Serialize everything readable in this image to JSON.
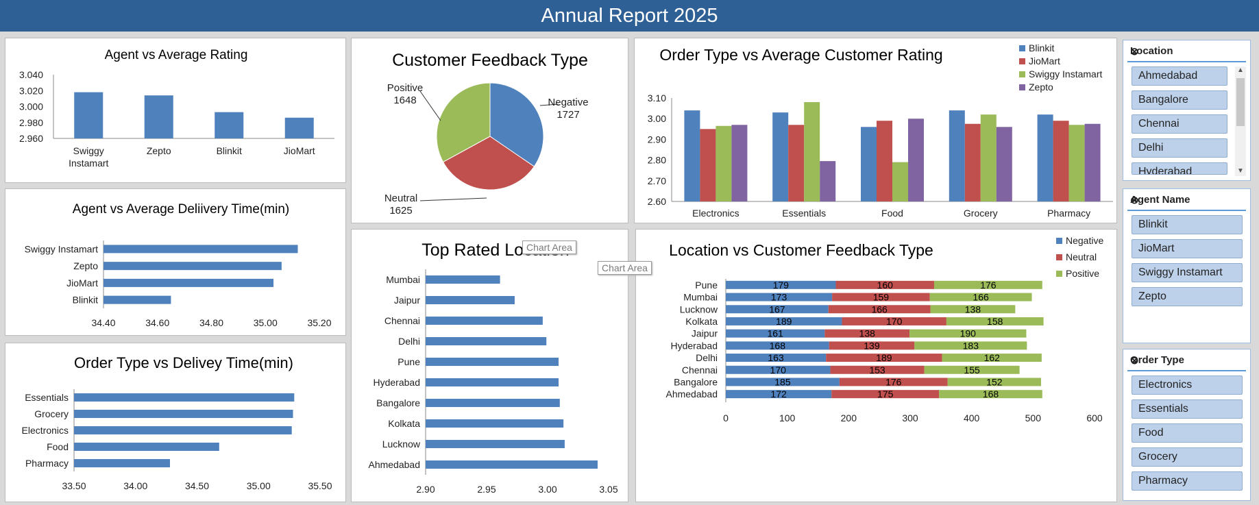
{
  "header": {
    "title": "Annual Report 2025"
  },
  "tooltips": {
    "chart_area_1": "Chart Area",
    "chart_area_2": "Chart Area"
  },
  "colors": {
    "blue": "#4f81bd",
    "red": "#c0504d",
    "green": "#9bbb59",
    "purple": "#8064a2",
    "header": "#2e5f95"
  },
  "slicers": {
    "location": {
      "title": "Location",
      "items": [
        "Ahmedabad",
        "Bangalore",
        "Chennai",
        "Delhi",
        "Hyderabad"
      ]
    },
    "agent": {
      "title": "Agent Name",
      "items": [
        "Blinkit",
        "JioMart",
        "Swiggy Instamart",
        "Zepto"
      ]
    },
    "order_type": {
      "title": "Order Type",
      "items": [
        "Electronics",
        "Essentials",
        "Food",
        "Grocery",
        "Pharmacy"
      ]
    }
  },
  "chart_data": [
    {
      "id": "agent_rating",
      "type": "bar",
      "title": "Agent vs Average Rating",
      "categories": [
        "Swiggy\nInstamart",
        "Zepto",
        "Blinkit",
        "JioMart"
      ],
      "values": [
        3.018,
        3.014,
        2.993,
        2.986
      ],
      "ylim": [
        2.96,
        3.04
      ],
      "yticks": [
        "2.960",
        "2.980",
        "3.000",
        "3.020",
        "3.040"
      ]
    },
    {
      "id": "agent_delivery",
      "type": "bar",
      "orientation": "horizontal",
      "title": "Agent vs Average Deliivery  Time(min)",
      "categories": [
        "Swiggy Instamart",
        "Zepto",
        "JioMart",
        "Blinkit"
      ],
      "values": [
        35.12,
        35.06,
        35.03,
        34.65
      ],
      "xlim": [
        34.4,
        35.2
      ],
      "xticks": [
        "34.40",
        "34.60",
        "34.80",
        "35.00",
        "35.20"
      ]
    },
    {
      "id": "order_delivery",
      "type": "bar",
      "orientation": "horizontal",
      "title": "Order Type vs Delivey Time(min)",
      "categories": [
        "Essentials",
        "Grocery",
        "Electronics",
        "Food",
        "Pharmacy"
      ],
      "values": [
        35.29,
        35.28,
        35.27,
        34.68,
        34.28
      ],
      "xlim": [
        33.5,
        35.5
      ],
      "xticks": [
        "33.50",
        "34.00",
        "34.50",
        "35.00",
        "35.50"
      ]
    },
    {
      "id": "feedback_type",
      "type": "pie",
      "title": "Customer Feedback Type",
      "labels": [
        "Negative",
        "Neutral",
        "Positive"
      ],
      "values": [
        1727,
        1625,
        1648
      ],
      "colors": [
        "#4f81bd",
        "#c0504d",
        "#9bbb59"
      ]
    },
    {
      "id": "top_location",
      "type": "bar",
      "orientation": "horizontal",
      "title": "Top Rated Location",
      "categories": [
        "Mumbai",
        "Jaipur",
        "Chennai",
        "Delhi",
        "Pune",
        "Hyderabad",
        "Bangalore",
        "Kolkata",
        "Lucknow",
        "Ahmedabad"
      ],
      "values": [
        2.961,
        2.973,
        2.996,
        2.999,
        3.009,
        3.009,
        3.01,
        3.013,
        3.014,
        3.041
      ],
      "xlim": [
        2.9,
        3.05
      ],
      "xticks": [
        "2.90",
        "2.95",
        "3.00",
        "3.05"
      ]
    },
    {
      "id": "order_rating",
      "type": "bar",
      "title": "Order Type vs Average Customer Rating",
      "categories": [
        "Electronics",
        "Essentials",
        "Food",
        "Grocery",
        "Pharmacy"
      ],
      "series": [
        {
          "name": "Blinkit",
          "values": [
            3.04,
            3.03,
            2.96,
            3.04,
            3.02
          ]
        },
        {
          "name": "JioMart",
          "values": [
            2.95,
            2.97,
            2.99,
            2.975,
            2.99
          ]
        },
        {
          "name": "Swiggy Instamart",
          "values": [
            2.965,
            3.08,
            2.79,
            3.02,
            2.97
          ]
        },
        {
          "name": "Zepto",
          "values": [
            2.97,
            2.795,
            3.0,
            2.96,
            2.975
          ]
        }
      ],
      "ylim": [
        2.6,
        3.1
      ],
      "yticks": [
        "2.60",
        "2.70",
        "2.80",
        "2.90",
        "3.00",
        "3.10"
      ],
      "legend": "top-right"
    },
    {
      "id": "location_feedback",
      "type": "bar",
      "orientation": "horizontal",
      "stacked": true,
      "title": "Location vs Customer Feedback Type",
      "categories": [
        "Pune",
        "Mumbai",
        "Lucknow",
        "Kolkata",
        "Jaipur",
        "Hyderabad",
        "Delhi",
        "Chennai",
        "Bangalore",
        "Ahmedabad"
      ],
      "series": [
        {
          "name": "Negative",
          "values": [
            179,
            173,
            167,
            189,
            161,
            168,
            163,
            170,
            185,
            172
          ]
        },
        {
          "name": "Neutral",
          "values": [
            160,
            159,
            166,
            170,
            138,
            139,
            189,
            153,
            176,
            175
          ]
        },
        {
          "name": "Positive",
          "values": [
            176,
            166,
            138,
            158,
            190,
            183,
            162,
            155,
            152,
            168
          ]
        }
      ],
      "xlim": [
        0,
        600
      ],
      "xticks": [
        "0",
        "100",
        "200",
        "300",
        "400",
        "500",
        "600"
      ],
      "legend": "top-right"
    }
  ]
}
